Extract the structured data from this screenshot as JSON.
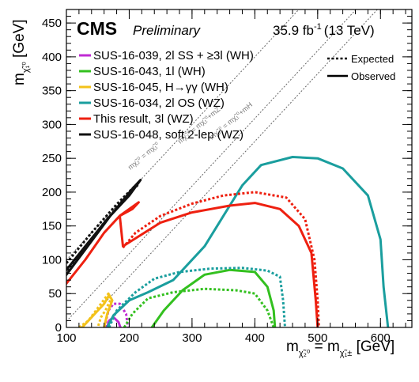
{
  "chart_data": {
    "type": "line",
    "experiment": "CMS",
    "status": "Preliminary",
    "lumi_text": "35.9 fb",
    "lumi_exp": "-1",
    "energy_text": "(13 TeV)",
    "xlabel_main": "m",
    "xlabel_sub1": "χ̃₂⁰",
    "xlabel_eq": " = m",
    "xlabel_sub2": "χ̃₁±",
    "xlabel_unit": " [GeV]",
    "ylabel_main": "m",
    "ylabel_sub": "χ̃₁⁰",
    "ylabel_unit": " [GeV]",
    "xlim": [
      100,
      650
    ],
    "ylim": [
      0,
      470
    ],
    "xticks": [
      100,
      200,
      300,
      400,
      500,
      600
    ],
    "yticks": [
      0,
      50,
      100,
      150,
      200,
      250,
      300,
      350,
      400,
      450
    ],
    "style_legend": {
      "expected": "Expected",
      "observed": "Observed"
    },
    "diagonal_labels": [
      "mχ̃₂⁰ = mχ̃₁⁰",
      "mχ̃₂⁰ = mχ̃₁⁰+mZ",
      "mχ̃₂⁰ = mχ̃₁⁰+mH"
    ],
    "series": [
      {
        "name": "SUS-16-039, 2l SS + ≥3l (WH)",
        "color": "#c02bd3",
        "expected": [
          [
            163,
            0
          ],
          [
            163,
            10
          ],
          [
            167,
            25
          ],
          [
            175,
            35
          ],
          [
            185,
            35
          ],
          [
            195,
            20
          ],
          [
            198,
            0
          ]
        ],
        "observed": [
          [
            165,
            0
          ],
          [
            168,
            10
          ],
          [
            175,
            15
          ],
          [
            183,
            8
          ],
          [
            186,
            0
          ]
        ]
      },
      {
        "name": "SUS-16-043, 1l (WH)",
        "color": "#33c01f",
        "expected": [
          [
            192,
            0
          ],
          [
            205,
            20
          ],
          [
            230,
            43
          ],
          [
            270,
            52
          ],
          [
            320,
            57
          ],
          [
            370,
            55
          ],
          [
            400,
            50
          ],
          [
            420,
            25
          ],
          [
            430,
            0
          ]
        ],
        "observed": [
          [
            236,
            0
          ],
          [
            255,
            25
          ],
          [
            285,
            55
          ],
          [
            320,
            78
          ],
          [
            360,
            85
          ],
          [
            400,
            82
          ],
          [
            420,
            60
          ],
          [
            430,
            25
          ],
          [
            432,
            0
          ]
        ]
      },
      {
        "name": "SUS-16-045, H→γγ (WH)",
        "color": "#f3c21a",
        "expected": [
          [
            120,
            0
          ],
          [
            135,
            10
          ],
          [
            155,
            35
          ],
          [
            167,
            50
          ],
          [
            170,
            40
          ],
          [
            162,
            25
          ],
          [
            155,
            15
          ],
          [
            150,
            0
          ]
        ],
        "observed": [
          [
            125,
            0
          ],
          [
            140,
            15
          ],
          [
            160,
            35
          ],
          [
            168,
            48
          ],
          [
            173,
            40
          ],
          [
            165,
            20
          ],
          [
            160,
            0
          ]
        ]
      },
      {
        "name": "SUS-16-034, 2l OS (WZ)",
        "color": "#1a9e9e",
        "expected": [
          [
            168,
            0
          ],
          [
            180,
            25
          ],
          [
            210,
            52
          ],
          [
            240,
            72
          ],
          [
            280,
            82
          ],
          [
            330,
            87
          ],
          [
            380,
            88
          ],
          [
            420,
            84
          ],
          [
            440,
            75
          ],
          [
            445,
            40
          ],
          [
            448,
            0
          ]
        ],
        "observed": [
          [
            165,
            0
          ],
          [
            175,
            18
          ],
          [
            200,
            40
          ],
          [
            230,
            52
          ],
          [
            270,
            70
          ],
          [
            320,
            120
          ],
          [
            350,
            165
          ],
          [
            380,
            210
          ],
          [
            410,
            240
          ],
          [
            460,
            252
          ],
          [
            500,
            250
          ],
          [
            540,
            235
          ],
          [
            580,
            195
          ],
          [
            600,
            130
          ],
          [
            605,
            60
          ],
          [
            612,
            0
          ]
        ]
      },
      {
        "name": "This result, 3l (WZ)",
        "color": "#ee2010",
        "expected": [
          [
            190,
            118
          ],
          [
            210,
            140
          ],
          [
            250,
            165
          ],
          [
            300,
            183
          ],
          [
            350,
            195
          ],
          [
            400,
            200
          ],
          [
            450,
            192
          ],
          [
            480,
            160
          ],
          [
            495,
            100
          ],
          [
            500,
            40
          ],
          [
            502,
            0
          ]
        ],
        "observed": [
          [
            100,
            65
          ],
          [
            130,
            100
          ],
          [
            160,
            140
          ],
          [
            185,
            165
          ],
          [
            205,
            175
          ],
          [
            215,
            185
          ],
          [
            185,
            165
          ],
          [
            190,
            120
          ],
          [
            250,
            155
          ],
          [
            300,
            170
          ],
          [
            360,
            180
          ],
          [
            400,
            184
          ],
          [
            440,
            175
          ],
          [
            470,
            150
          ],
          [
            490,
            110
          ],
          [
            497,
            40
          ],
          [
            500,
            0
          ]
        ]
      },
      {
        "name": "SUS-16-048, soft 2-lep (WZ)",
        "color": "#111111",
        "expected": [
          [
            100,
            95
          ],
          [
            140,
            140
          ],
          [
            180,
            182
          ],
          [
            210,
            210
          ],
          [
            215,
            212
          ],
          [
            200,
            198
          ],
          [
            160,
            155
          ],
          [
            120,
            105
          ],
          [
            100,
            82
          ]
        ],
        "observed": [
          [
            100,
            85
          ],
          [
            130,
            120
          ],
          [
            165,
            160
          ],
          [
            200,
            195
          ],
          [
            218,
            218
          ],
          [
            205,
            205
          ],
          [
            170,
            165
          ],
          [
            130,
            115
          ],
          [
            100,
            78
          ]
        ]
      }
    ]
  }
}
